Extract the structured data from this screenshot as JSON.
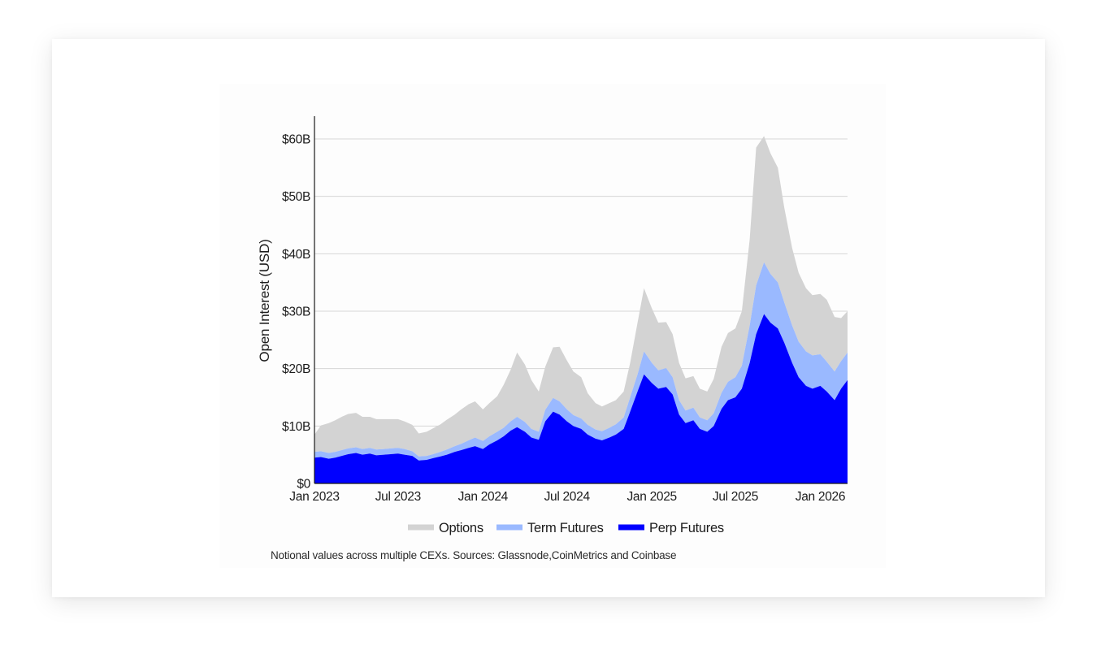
{
  "chart_data": {
    "type": "area",
    "stacked": true,
    "ylabel": "Open Interest (USD)",
    "xlabel": "",
    "title": "",
    "ylim": [
      0,
      64
    ],
    "y_unit": "billion USD",
    "y_ticks": [
      {
        "value": 0,
        "label": "$0"
      },
      {
        "value": 10,
        "label": "$10B"
      },
      {
        "value": 20,
        "label": "$20B"
      },
      {
        "value": 30,
        "label": "$30B"
      },
      {
        "value": 40,
        "label": "$40B"
      },
      {
        "value": 50,
        "label": "$50B"
      },
      {
        "value": 60,
        "label": "$60B"
      }
    ],
    "x_ticks": [
      {
        "date": "2023-01",
        "label": "Jan 2023"
      },
      {
        "date": "2023-07",
        "label": "Jul 2023"
      },
      {
        "date": "2024-01",
        "label": "Jan 2024"
      },
      {
        "date": "2024-07",
        "label": "Jul 2024"
      },
      {
        "date": "2025-01",
        "label": "Jan 2025"
      },
      {
        "date": "2025-07",
        "label": "Jul 2025"
      },
      {
        "date": "2026-01",
        "label": "Jan 2026"
      }
    ],
    "x": [
      "2023-01-01",
      "2023-01-15",
      "2023-02-01",
      "2023-02-15",
      "2023-03-01",
      "2023-03-15",
      "2023-04-01",
      "2023-04-15",
      "2023-05-01",
      "2023-05-15",
      "2023-06-01",
      "2023-06-15",
      "2023-07-01",
      "2023-07-15",
      "2023-08-01",
      "2023-08-15",
      "2023-09-01",
      "2023-09-15",
      "2023-10-01",
      "2023-10-15",
      "2023-11-01",
      "2023-11-15",
      "2023-12-01",
      "2023-12-15",
      "2024-01-01",
      "2024-01-15",
      "2024-02-01",
      "2024-02-15",
      "2024-03-01",
      "2024-03-15",
      "2024-04-01",
      "2024-04-15",
      "2024-05-01",
      "2024-05-15",
      "2024-06-01",
      "2024-06-15",
      "2024-07-01",
      "2024-07-15",
      "2024-08-01",
      "2024-08-15",
      "2024-09-01",
      "2024-09-15",
      "2024-10-01",
      "2024-10-15",
      "2024-11-01",
      "2024-11-15",
      "2024-12-01",
      "2024-12-15",
      "2025-01-01",
      "2025-01-15",
      "2025-02-01",
      "2025-02-15",
      "2025-03-01",
      "2025-03-15",
      "2025-04-01",
      "2025-04-15",
      "2025-05-01",
      "2025-05-15",
      "2025-06-01",
      "2025-06-15",
      "2025-07-01",
      "2025-07-15",
      "2025-08-01",
      "2025-08-15",
      "2025-09-01",
      "2025-09-15",
      "2025-10-01",
      "2025-10-15",
      "2025-11-01",
      "2025-11-15",
      "2025-12-01",
      "2025-12-15",
      "2026-01-01",
      "2026-01-15",
      "2026-02-01",
      "2026-02-15",
      "2026-03-01"
    ],
    "series": [
      {
        "name": "Perp Futures",
        "color": "#0000ff",
        "values": [
          4.5,
          4.6,
          4.3,
          4.5,
          4.8,
          5.1,
          5.3,
          5.0,
          5.2,
          4.9,
          5.0,
          5.1,
          5.2,
          5.0,
          4.8,
          4.0,
          4.1,
          4.4,
          4.7,
          5.0,
          5.5,
          5.8,
          6.2,
          6.5,
          6.0,
          6.8,
          7.5,
          8.2,
          9.2,
          9.8,
          9.0,
          8.0,
          7.6,
          10.8,
          12.5,
          12.0,
          10.8,
          10.0,
          9.5,
          8.5,
          7.8,
          7.5,
          8.0,
          8.5,
          9.5,
          12.5,
          16.0,
          19.0,
          17.5,
          16.5,
          16.8,
          15.5,
          12.0,
          10.5,
          11.0,
          9.5,
          9.0,
          10.0,
          13.0,
          14.5,
          15.0,
          16.5,
          21.0,
          26.0,
          29.5,
          28.0,
          27.0,
          24.5,
          21.0,
          18.5,
          17.0,
          16.5,
          17.0,
          16.0,
          14.5,
          16.5,
          18.0
        ]
      },
      {
        "name": "Term Futures",
        "color": "#9ab9ff",
        "values": [
          1.0,
          1.0,
          1.0,
          1.0,
          1.0,
          1.0,
          1.0,
          1.0,
          1.0,
          1.0,
          1.0,
          1.0,
          1.0,
          1.0,
          0.8,
          0.7,
          0.7,
          0.7,
          0.8,
          0.9,
          1.0,
          1.1,
          1.3,
          1.5,
          1.4,
          1.4,
          1.5,
          1.5,
          1.6,
          1.8,
          1.7,
          1.5,
          1.4,
          2.0,
          2.4,
          2.3,
          2.1,
          1.9,
          1.8,
          1.7,
          1.6,
          1.6,
          1.7,
          1.8,
          2.0,
          2.5,
          3.0,
          4.0,
          3.5,
          3.2,
          3.3,
          3.0,
          2.5,
          2.2,
          2.2,
          2.0,
          2.0,
          2.2,
          2.8,
          3.2,
          3.5,
          4.0,
          6.5,
          8.5,
          9.0,
          8.5,
          8.0,
          7.0,
          6.5,
          6.2,
          6.0,
          5.8,
          5.5,
          5.2,
          5.0,
          4.8,
          4.8
        ]
      },
      {
        "name": "Options",
        "color": "#d3d3d3",
        "values": [
          3.0,
          4.5,
          5.2,
          5.5,
          5.8,
          6.0,
          6.0,
          5.6,
          5.4,
          5.3,
          5.2,
          5.1,
          5.0,
          4.8,
          4.6,
          4.0,
          4.2,
          4.5,
          4.8,
          5.2,
          5.5,
          6.0,
          6.3,
          6.3,
          5.5,
          5.8,
          6.2,
          7.5,
          9.0,
          11.2,
          10.0,
          8.5,
          7.0,
          7.5,
          8.8,
          9.5,
          8.5,
          7.6,
          7.2,
          5.5,
          4.6,
          4.3,
          4.3,
          4.2,
          4.5,
          6.0,
          9.0,
          11.0,
          9.5,
          8.3,
          8.0,
          7.5,
          6.5,
          5.6,
          5.5,
          5.0,
          5.0,
          6.0,
          8.0,
          8.5,
          8.5,
          9.5,
          15.0,
          24.0,
          22.0,
          21.0,
          20.0,
          16.5,
          13.5,
          12.0,
          11.0,
          10.5,
          10.5,
          10.8,
          9.5,
          7.5,
          7.2
        ]
      }
    ],
    "legend": {
      "placement": "bottom-center",
      "order": [
        "Options",
        "Term Futures",
        "Perp Futures"
      ]
    },
    "grid": {
      "x": false,
      "y": true
    },
    "annotations": [],
    "source_note": "Notional values across multiple CEXs. Sources: Glassnode,CoinMetrics and Coinbase"
  }
}
